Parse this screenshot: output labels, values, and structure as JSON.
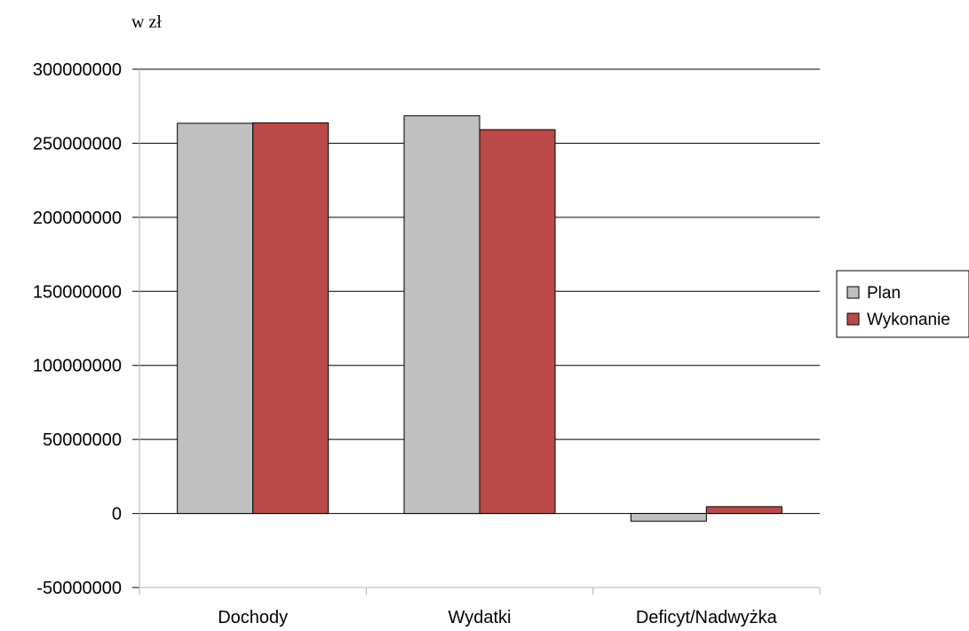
{
  "chart_data": {
    "type": "bar",
    "title": "",
    "ylabel": "w zł",
    "xlabel": "",
    "ylim": [
      -50000000,
      300000000
    ],
    "yticks": [
      300000000,
      250000000,
      200000000,
      150000000,
      100000000,
      50000000,
      0,
      -50000000
    ],
    "ytick_labels": [
      "300000000",
      "250000000",
      "200000000",
      "150000000",
      "100000000",
      "50000000",
      "0",
      "-50000000"
    ],
    "categories": [
      "Dochody",
      "Wydatki",
      "Deficyt/Nadwyżka"
    ],
    "series": [
      {
        "name": "Plan",
        "color": "#c0c0c0",
        "values": [
          263500000,
          268600000,
          -5200000
        ]
      },
      {
        "name": "Wykonanie",
        "color": "#b94a48",
        "values": [
          263800000,
          259200000,
          4600000
        ]
      }
    ],
    "grid": true,
    "legend": "right"
  }
}
